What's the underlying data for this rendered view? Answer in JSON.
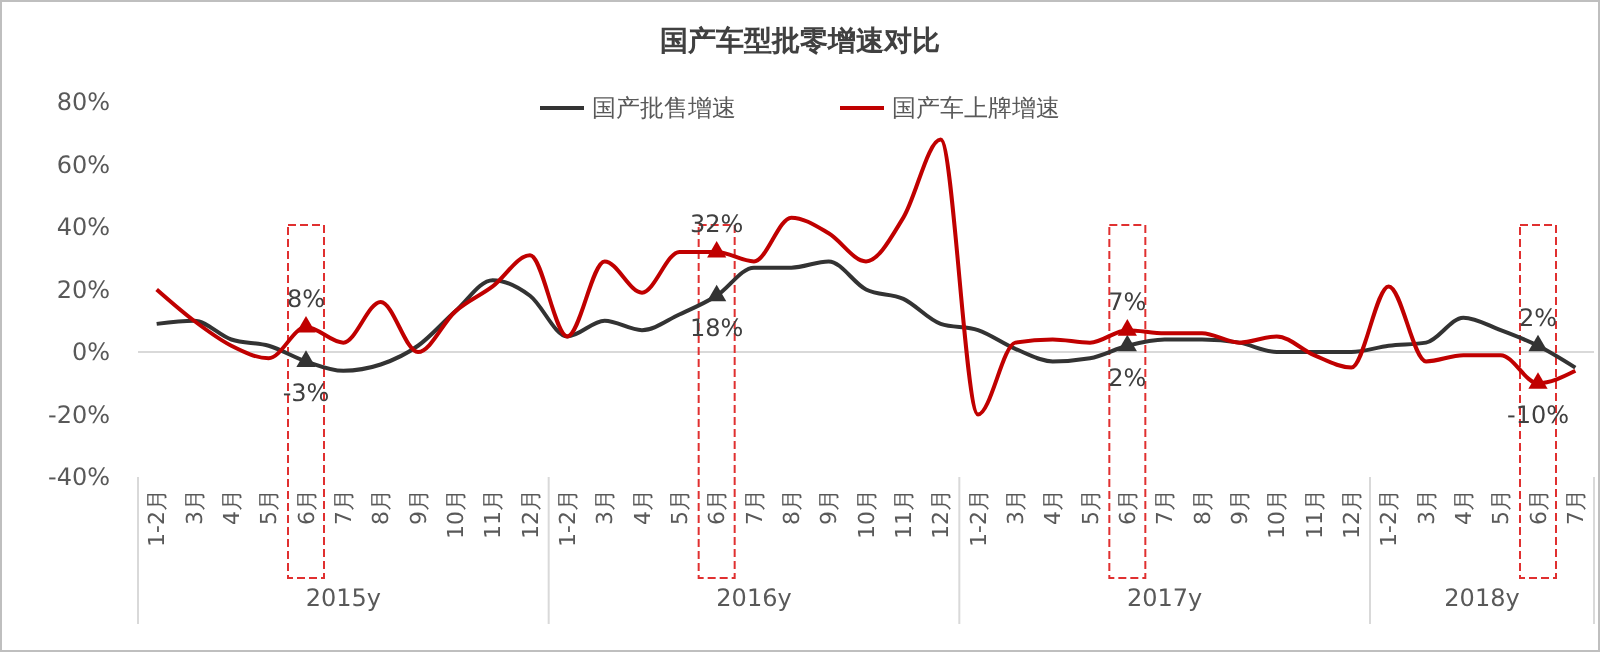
{
  "chart_data": {
    "type": "line",
    "title": "国产车型批零增速对比",
    "categories": [
      "1-2月",
      "3月",
      "4月",
      "5月",
      "6月",
      "7月",
      "8月",
      "9月",
      "10月",
      "11月",
      "12月",
      "1-2月",
      "3月",
      "4月",
      "5月",
      "6月",
      "7月",
      "8月",
      "9月",
      "10月",
      "11月",
      "12月",
      "1-2月",
      "3月",
      "4月",
      "5月",
      "6月",
      "7月",
      "8月",
      "9月",
      "10月",
      "11月",
      "12月",
      "1-2月",
      "3月",
      "4月",
      "5月",
      "6月",
      "7月"
    ],
    "series": [
      {
        "name": "国产批售增速",
        "color": "#333333",
        "values": [
          9,
          10,
          4,
          2,
          -3,
          -6,
          -4,
          2,
          13,
          23,
          18,
          5,
          10,
          7,
          12,
          18,
          27,
          27,
          29,
          20,
          17,
          9,
          7,
          1,
          -3,
          -2,
          2,
          4,
          4,
          3,
          0,
          0,
          0,
          2,
          3,
          11,
          7,
          2,
          -5
        ],
        "value_labels": [
          null,
          null,
          null,
          null,
          "-3%",
          null,
          null,
          null,
          null,
          null,
          null,
          null,
          null,
          null,
          null,
          "18%",
          null,
          null,
          null,
          null,
          null,
          null,
          null,
          null,
          null,
          null,
          "2%",
          null,
          null,
          null,
          null,
          null,
          null,
          null,
          null,
          null,
          null,
          "2%",
          null
        ]
      },
      {
        "name": "国产车上牌增速",
        "color": "#c00000",
        "values": [
          20,
          10,
          2,
          -2,
          8,
          3,
          16,
          0,
          13,
          21,
          31,
          5,
          29,
          19,
          32,
          32,
          29,
          43,
          38,
          29,
          43,
          68,
          -20,
          3,
          4,
          3,
          7,
          6,
          6,
          3,
          5,
          -1,
          -5,
          21,
          -3,
          -1,
          -1,
          -10,
          -6
        ],
        "value_labels": [
          null,
          null,
          null,
          null,
          "8%",
          null,
          null,
          null,
          null,
          null,
          null,
          null,
          null,
          null,
          null,
          "32%",
          null,
          null,
          null,
          null,
          null,
          null,
          null,
          null,
          null,
          null,
          "7%",
          null,
          null,
          null,
          null,
          null,
          null,
          null,
          null,
          null,
          null,
          "-10%",
          null
        ]
      }
    ],
    "ylim": [
      -40,
      80
    ],
    "yticks": [
      {
        "value": -40,
        "label": "-40%"
      },
      {
        "value": -20,
        "label": "-20%"
      },
      {
        "value": 0,
        "label": "0%"
      },
      {
        "value": 20,
        "label": "20%"
      },
      {
        "value": 40,
        "label": "40%"
      },
      {
        "value": 60,
        "label": "60%"
      },
      {
        "value": 80,
        "label": "80%"
      }
    ],
    "annotations": [
      "2015y",
      "2016y",
      "2017y",
      "2018y"
    ],
    "ref_lines": [
      {
        "axis": "y",
        "value": 0,
        "color": "#d9d9d9"
      }
    ],
    "legend": "top",
    "line_style": "solid"
  }
}
